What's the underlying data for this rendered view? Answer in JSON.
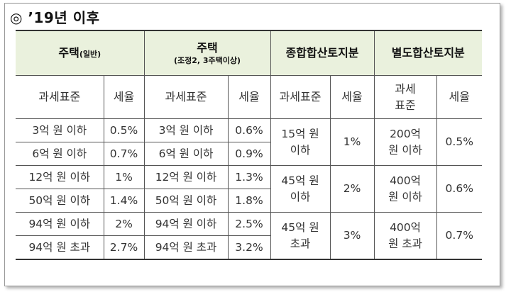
{
  "heading": "◎ ’19년 이후",
  "header": {
    "col1_title": "주택",
    "col1_sub": "(일반)",
    "col2_title": "주택",
    "col2_sub": "(조정2, 3주택이상)",
    "col3_title": "종합합산토지분",
    "col4_title": "별도합산토지분",
    "base_label": "과세표준",
    "rate_label": "세율"
  },
  "rows": [
    {
      "h1_base": "3억 원 이하",
      "h1_rate": "0.5%",
      "h2_base": "3억 원 이하",
      "h2_rate": "0.6%"
    },
    {
      "h1_base": "6억 원 이하",
      "h1_rate": "0.7%",
      "h2_base": "6억 원 이하",
      "h2_rate": "0.9%"
    },
    {
      "h1_base": "12억 원 이하",
      "h1_rate": "1%",
      "h2_base": "12억 원 이하",
      "h2_rate": "1.3%"
    },
    {
      "h1_base": "50억 원 이하",
      "h1_rate": "1.4%",
      "h2_base": "50억 원 이하",
      "h2_rate": "1.8%"
    },
    {
      "h1_base": "94억 원 이하",
      "h1_rate": "2%",
      "h2_base": "94억 원 이하",
      "h2_rate": "2.5%"
    },
    {
      "h1_base": "94억 원 초과",
      "h1_rate": "2.7%",
      "h2_base": "94억 원 초과",
      "h2_rate": "3.2%"
    }
  ],
  "land_comprehensive": [
    {
      "base": "15억 원 이하",
      "rate": "1%"
    },
    {
      "base": "45억 원 이하",
      "rate": "2%"
    },
    {
      "base": "45억 원 초과",
      "rate": "3%"
    }
  ],
  "land_separate": [
    {
      "base": "200억 원 이하",
      "rate": "0.5%"
    },
    {
      "base": "400억 원 이하",
      "rate": "0.6%"
    },
    {
      "base": "400억 원 초과",
      "rate": "0.7%"
    }
  ],
  "colors": {
    "header_bg": "#eaf1dd",
    "border": "#555555"
  }
}
